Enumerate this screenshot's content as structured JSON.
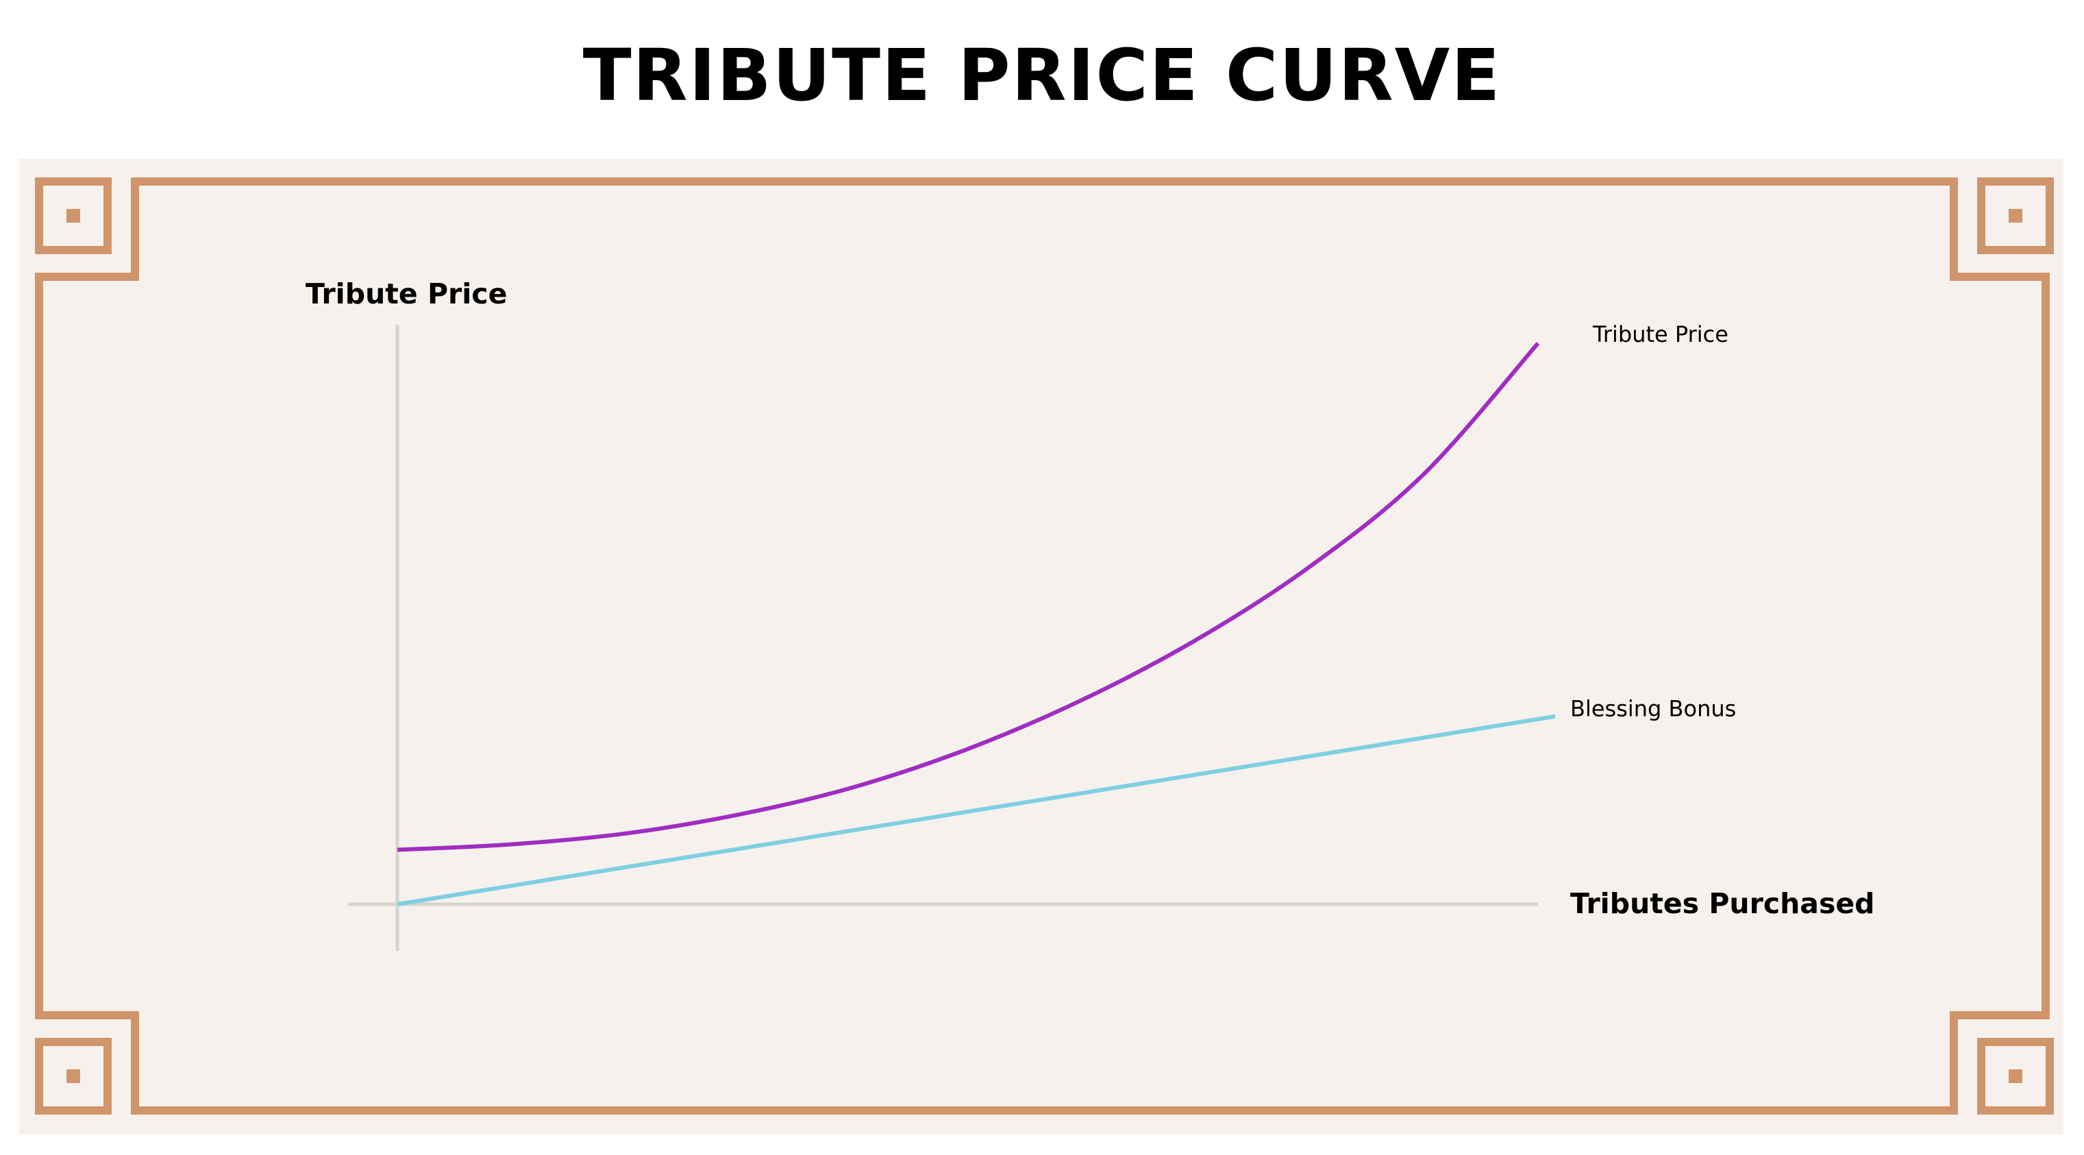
{
  "page": {
    "title": "TRIBUTE PRICE CURVE"
  },
  "theme": {
    "panel_bg": "#f6f1ed",
    "border_color": "#d0956b",
    "axis_color": "#d6d3d0"
  },
  "chart_data": {
    "type": "line",
    "title": "TRIBUTE PRICE CURVE",
    "xlabel": "Tributes Purchased",
    "ylabel": "Tribute Price",
    "ticks_shown": false,
    "grid": false,
    "xlim": [
      0,
      100
    ],
    "ylim": [
      -10,
      100
    ],
    "series": [
      {
        "name": "Tribute Price",
        "color": "#a02dc2",
        "x": [
          0,
          10,
          20,
          30,
          40,
          50,
          60,
          70,
          80,
          90,
          100
        ],
        "y": [
          10,
          11,
          13,
          16.5,
          21.5,
          28.5,
          37.5,
          48.5,
          62,
          79,
          103
        ]
      },
      {
        "name": "Blessing Bonus",
        "color": "#7ecfe2",
        "x": [
          0,
          101.5
        ],
        "y": [
          0,
          34.5
        ]
      }
    ]
  }
}
